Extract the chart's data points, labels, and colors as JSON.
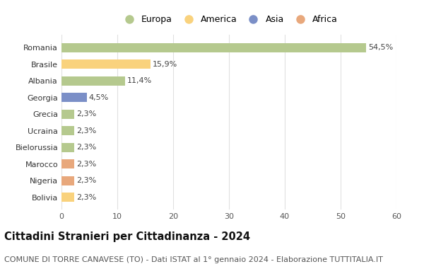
{
  "countries": [
    "Romania",
    "Brasile",
    "Albania",
    "Georgia",
    "Grecia",
    "Ucraina",
    "Bielorussia",
    "Marocco",
    "Nigeria",
    "Bolivia"
  ],
  "values": [
    54.5,
    15.9,
    11.4,
    4.5,
    2.3,
    2.3,
    2.3,
    2.3,
    2.3,
    2.3
  ],
  "labels": [
    "54,5%",
    "15,9%",
    "11,4%",
    "4,5%",
    "2,3%",
    "2,3%",
    "2,3%",
    "2,3%",
    "2,3%",
    "2,3%"
  ],
  "colors": [
    "#b5c98e",
    "#f9d27d",
    "#b5c98e",
    "#7b8fc7",
    "#b5c98e",
    "#b5c98e",
    "#b5c98e",
    "#e8a87c",
    "#e8a87c",
    "#f9d27d"
  ],
  "legend_labels": [
    "Europa",
    "America",
    "Asia",
    "Africa"
  ],
  "legend_colors": [
    "#b5c98e",
    "#f9d27d",
    "#7b8fc7",
    "#e8a87c"
  ],
  "xlim": [
    0,
    60
  ],
  "xticks": [
    0,
    10,
    20,
    30,
    40,
    50,
    60
  ],
  "title": "Cittadini Stranieri per Cittadinanza - 2024",
  "subtitle": "COMUNE DI TORRE CANAVESE (TO) - Dati ISTAT al 1° gennaio 2024 - Elaborazione TUTTITALIA.IT",
  "background_color": "#ffffff",
  "grid_color": "#e0e0e0",
  "bar_height": 0.55,
  "title_fontsize": 10.5,
  "subtitle_fontsize": 8,
  "label_fontsize": 8,
  "tick_fontsize": 8,
  "legend_fontsize": 9
}
